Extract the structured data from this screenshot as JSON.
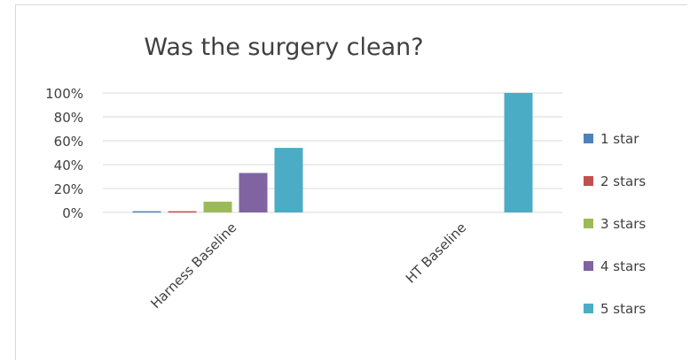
{
  "chart_data": {
    "type": "bar",
    "title": "Was the surgery clean?",
    "xlabel": "",
    "ylabel": "",
    "categories": [
      "Harness Baseline",
      "HT Baseline"
    ],
    "ylim": [
      0,
      100
    ],
    "yticks": [
      "0%",
      "20%",
      "40%",
      "60%",
      "80%",
      "100%"
    ],
    "grid": true,
    "legend_position": "right",
    "series": [
      {
        "name": "1 star",
        "color": "#4F81BD",
        "values": [
          1,
          0
        ]
      },
      {
        "name": "2 stars",
        "color": "#C0504D",
        "values": [
          1,
          0
        ]
      },
      {
        "name": "3 stars",
        "color": "#9BBB59",
        "values": [
          9,
          0
        ]
      },
      {
        "name": "4 stars",
        "color": "#8064A2",
        "values": [
          33,
          0
        ]
      },
      {
        "name": "5 stars",
        "color": "#4BACC6",
        "values": [
          54,
          100
        ]
      }
    ]
  }
}
